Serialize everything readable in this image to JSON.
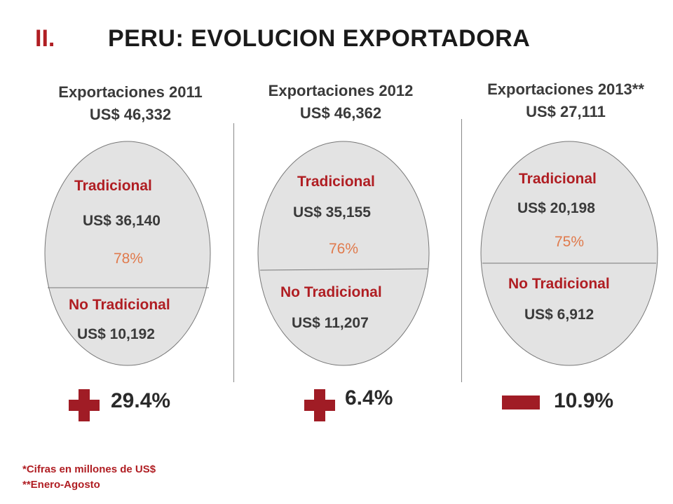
{
  "title": {
    "number": "II.",
    "text": "PERU: EVOLUCION EXPORTADORA"
  },
  "colors": {
    "accent": "#b01e23",
    "ellipse": "#e3e3e3",
    "pct": "#e07a4c",
    "sign": "#a01c25"
  },
  "chart_data": [
    {
      "type": "pie",
      "title": "Exportaciones 2011",
      "total": "US$ 46,332",
      "categories": [
        "Tradicional",
        "No Tradicional"
      ],
      "values": [
        36140,
        10192
      ],
      "value_labels": [
        "US$ 36,140",
        "US$ 10,192"
      ],
      "percent_label": "78%",
      "share_tradicional": 0.78,
      "change_sign": "plus",
      "change": "29.4%"
    },
    {
      "type": "pie",
      "title": "Exportaciones 2012",
      "total": "US$ 46,362",
      "categories": [
        "Tradicional",
        "No Tradicional"
      ],
      "values": [
        35155,
        11207
      ],
      "value_labels": [
        "US$ 35,155",
        "US$ 11,207"
      ],
      "percent_label": "76%",
      "share_tradicional": 0.76,
      "change_sign": "plus",
      "change": "6.4%"
    },
    {
      "type": "pie",
      "title": "Exportaciones 2013**",
      "total": "US$ 27,111",
      "categories": [
        "Tradicional",
        "No Tradicional"
      ],
      "values": [
        20198,
        6912
      ],
      "value_labels": [
        "US$ 20,198",
        "US$ 6,912"
      ],
      "percent_label": "75%",
      "share_tradicional": 0.75,
      "change_sign": "minus",
      "change": "10.9%"
    }
  ],
  "footnotes": [
    "*Cifras en millones de US$",
    "**Enero-Agosto"
  ]
}
